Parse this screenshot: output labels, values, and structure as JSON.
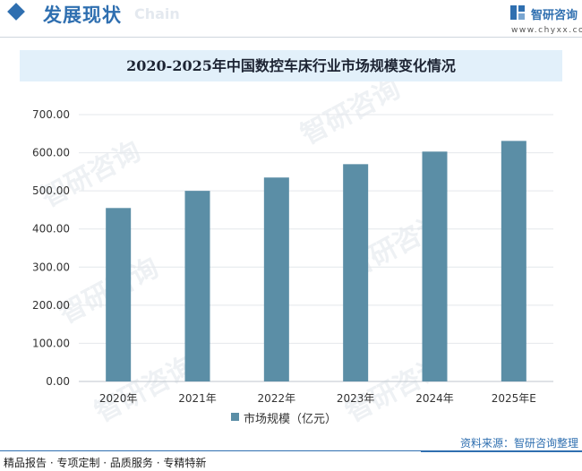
{
  "header": {
    "section_title": "发展现状",
    "section_title_en": "Chain",
    "brand_name": "智研咨询",
    "brand_url": "www.chyxx.com"
  },
  "watermark": "智研咨询",
  "chart_data": {
    "type": "bar",
    "title": "2020-2025年中国数控车床行业市场规模变化情况",
    "categories": [
      "2020年",
      "2021年",
      "2022年",
      "2023年",
      "2024年",
      "2025年E"
    ],
    "series": [
      {
        "name": "市场规模（亿元）",
        "values": [
          455,
          500,
          535,
          570,
          603,
          631
        ]
      }
    ],
    "ylim": [
      0,
      700
    ],
    "yticks": [
      "0.00",
      "100.00",
      "200.00",
      "300.00",
      "400.00",
      "500.00",
      "600.00",
      "700.00"
    ],
    "grid": true,
    "legend": "bottom-center",
    "bar_color": "#5b8ea6"
  },
  "footer": {
    "tagline": "精品报告 · 专项定制 · 品质服务 · 专精特新",
    "source": "资料来源：智研咨询整理"
  },
  "colors": {
    "brand": "#2f6fb0",
    "title_band": "#e2f0fa"
  }
}
